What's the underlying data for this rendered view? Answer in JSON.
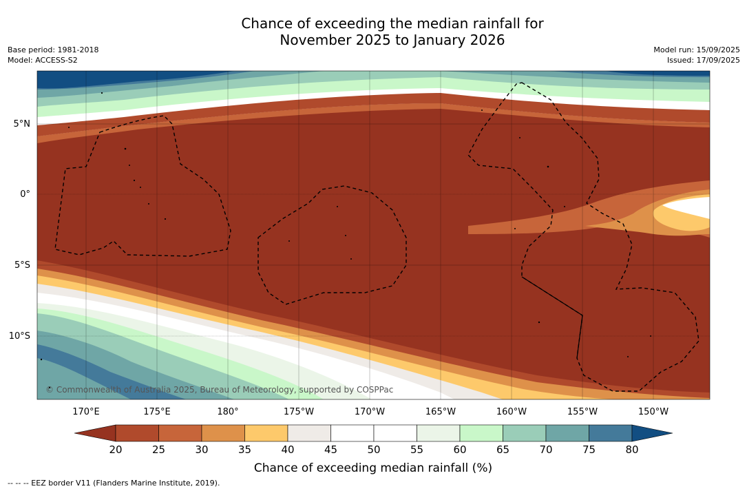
{
  "title": {
    "line1": "Chance of exceeding the median rainfall for",
    "line2": "November 2025 to January 2026"
  },
  "meta_left": {
    "base_period": "Base period: 1981-2018",
    "model": "Model: ACCESS-S2"
  },
  "meta_right": {
    "model_run": "Model run: 15/09/2025",
    "issued": "Issued: 17/09/2025"
  },
  "map": {
    "lat_labels": [
      "5°N",
      "0°",
      "5°S",
      "10°S"
    ],
    "lon_labels": [
      "170°E",
      "175°E",
      "180°",
      "175°W",
      "170°W",
      "165°W",
      "160°W",
      "155°W",
      "150°W"
    ],
    "copyright": "© Commonwealth of Australia 2025, Bureau of Meteorology, supported by COSPPac",
    "eez_style": "dashed black lines"
  },
  "colorbar": {
    "ticks": [
      "20",
      "25",
      "30",
      "35",
      "40",
      "45",
      "50",
      "55",
      "60",
      "65",
      "70",
      "75",
      "80"
    ],
    "colors": [
      "#963320",
      "#b04a2c",
      "#c7653a",
      "#de914a",
      "#fdc96b",
      "#efebe7",
      "#ffffff",
      "#ffffff",
      "#ebf5e8",
      "#c9f7c9",
      "#9acdb8",
      "#6fa6a6",
      "#447a9a",
      "#124e82"
    ],
    "label": "Chance of exceeding median rainfall (%)"
  },
  "footnote": "--  --  -- EEZ border V11 (Flanders Marine Institute, 2019).",
  "colors": {
    "very_low": "#963320",
    "low": "#b04a2c",
    "near_median": "#ffffff",
    "high": "#6fa6a6",
    "very_high": "#124e82"
  }
}
